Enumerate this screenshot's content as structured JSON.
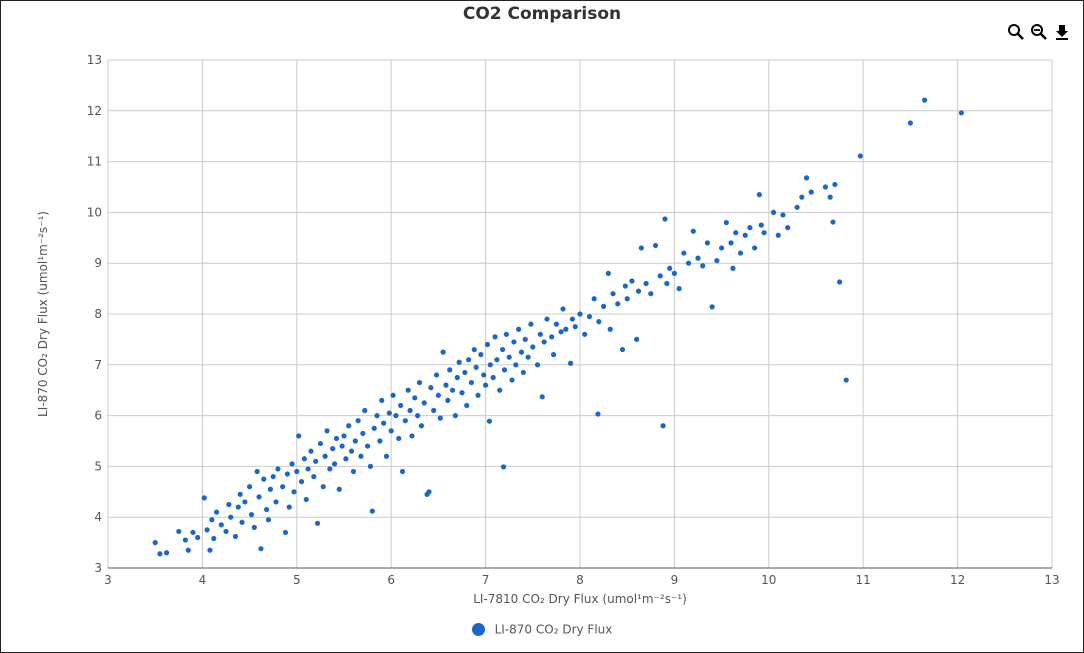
{
  "chart_data": {
    "type": "scatter",
    "title": "CO2 Comparison",
    "xlabel": "LI-7810 CO₂ Dry Flux (umol¹m⁻²s⁻¹)",
    "ylabel": "LI-870 CO₂ Dry Flux (umol¹m⁻²s⁻¹)",
    "xlim": [
      3,
      13
    ],
    "ylim": [
      3,
      13
    ],
    "xticks": [
      "3",
      "4",
      "5",
      "6",
      "7",
      "8",
      "9",
      "10",
      "11",
      "12",
      "13"
    ],
    "yticks": [
      "3",
      "4",
      "5",
      "6",
      "7",
      "8",
      "9",
      "10",
      "11",
      "12",
      "13"
    ],
    "grid": true,
    "legend_position": "bottom",
    "series": [
      {
        "name": "LI-870 CO₂ Dry Flux",
        "color": "#1a66c9",
        "points": [
          [
            3.5,
            3.5
          ],
          [
            3.55,
            3.28
          ],
          [
            3.62,
            3.3
          ],
          [
            3.75,
            3.72
          ],
          [
            3.82,
            3.55
          ],
          [
            3.85,
            3.35
          ],
          [
            3.9,
            3.7
          ],
          [
            3.95,
            3.6
          ],
          [
            4.02,
            4.38
          ],
          [
            4.05,
            3.75
          ],
          [
            4.08,
            3.35
          ],
          [
            4.1,
            3.95
          ],
          [
            4.12,
            3.58
          ],
          [
            4.15,
            4.1
          ],
          [
            4.2,
            3.85
          ],
          [
            4.25,
            3.72
          ],
          [
            4.28,
            4.25
          ],
          [
            4.3,
            4.0
          ],
          [
            4.35,
            3.62
          ],
          [
            4.38,
            4.2
          ],
          [
            4.4,
            4.45
          ],
          [
            4.42,
            3.9
          ],
          [
            4.45,
            4.3
          ],
          [
            4.5,
            4.6
          ],
          [
            4.52,
            4.05
          ],
          [
            4.55,
            3.8
          ],
          [
            4.58,
            4.9
          ],
          [
            4.6,
            4.4
          ],
          [
            4.62,
            3.38
          ],
          [
            4.65,
            4.75
          ],
          [
            4.68,
            4.15
          ],
          [
            4.7,
            3.95
          ],
          [
            4.72,
            4.55
          ],
          [
            4.75,
            4.8
          ],
          [
            4.78,
            4.3
          ],
          [
            4.8,
            4.95
          ],
          [
            4.85,
            4.6
          ],
          [
            4.88,
            3.7
          ],
          [
            4.9,
            4.85
          ],
          [
            4.92,
            4.2
          ],
          [
            4.95,
            5.05
          ],
          [
            4.97,
            4.5
          ],
          [
            5.0,
            4.9
          ],
          [
            5.02,
            5.6
          ],
          [
            5.05,
            4.7
          ],
          [
            5.08,
            5.15
          ],
          [
            5.1,
            4.35
          ],
          [
            5.12,
            4.95
          ],
          [
            5.15,
            5.3
          ],
          [
            5.18,
            4.8
          ],
          [
            5.2,
            5.1
          ],
          [
            5.22,
            3.88
          ],
          [
            5.25,
            5.45
          ],
          [
            5.28,
            4.6
          ],
          [
            5.3,
            5.2
          ],
          [
            5.32,
            5.7
          ],
          [
            5.35,
            4.95
          ],
          [
            5.38,
            5.35
          ],
          [
            5.4,
            5.05
          ],
          [
            5.42,
            5.55
          ],
          [
            5.45,
            4.55
          ],
          [
            5.48,
            5.4
          ],
          [
            5.5,
            5.6
          ],
          [
            5.52,
            5.15
          ],
          [
            5.55,
            5.8
          ],
          [
            5.58,
            5.3
          ],
          [
            5.6,
            4.9
          ],
          [
            5.62,
            5.5
          ],
          [
            5.65,
            5.9
          ],
          [
            5.68,
            5.2
          ],
          [
            5.7,
            5.65
          ],
          [
            5.72,
            6.1
          ],
          [
            5.75,
            5.4
          ],
          [
            5.78,
            5.0
          ],
          [
            5.8,
            4.12
          ],
          [
            5.82,
            5.75
          ],
          [
            5.85,
            6.0
          ],
          [
            5.88,
            5.5
          ],
          [
            5.9,
            6.3
          ],
          [
            5.92,
            5.85
          ],
          [
            5.95,
            5.2
          ],
          [
            5.98,
            6.05
          ],
          [
            6.0,
            5.7
          ],
          [
            6.02,
            6.4
          ],
          [
            6.05,
            6.0
          ],
          [
            6.08,
            5.55
          ],
          [
            6.1,
            6.2
          ],
          [
            6.12,
            4.9
          ],
          [
            6.15,
            5.9
          ],
          [
            6.18,
            6.5
          ],
          [
            6.2,
            6.1
          ],
          [
            6.22,
            5.6
          ],
          [
            6.25,
            6.35
          ],
          [
            6.28,
            6.0
          ],
          [
            6.3,
            6.65
          ],
          [
            6.32,
            5.8
          ],
          [
            6.35,
            6.25
          ],
          [
            6.38,
            4.45
          ],
          [
            6.4,
            4.5
          ],
          [
            6.42,
            6.55
          ],
          [
            6.45,
            6.1
          ],
          [
            6.48,
            6.8
          ],
          [
            6.5,
            6.4
          ],
          [
            6.52,
            5.95
          ],
          [
            6.55,
            7.25
          ],
          [
            6.58,
            6.6
          ],
          [
            6.6,
            6.3
          ],
          [
            6.62,
            6.9
          ],
          [
            6.65,
            6.5
          ],
          [
            6.68,
            6.0
          ],
          [
            6.7,
            6.75
          ],
          [
            6.72,
            7.05
          ],
          [
            6.75,
            6.45
          ],
          [
            6.78,
            6.85
          ],
          [
            6.8,
            6.2
          ],
          [
            6.82,
            7.1
          ],
          [
            6.85,
            6.65
          ],
          [
            6.88,
            7.3
          ],
          [
            6.9,
            6.95
          ],
          [
            6.92,
            6.4
          ],
          [
            6.95,
            7.2
          ],
          [
            6.98,
            6.8
          ],
          [
            7.0,
            6.6
          ],
          [
            7.02,
            7.4
          ],
          [
            7.04,
            5.89
          ],
          [
            7.05,
            7.0
          ],
          [
            7.08,
            6.75
          ],
          [
            7.1,
            7.55
          ],
          [
            7.12,
            7.1
          ],
          [
            7.15,
            6.5
          ],
          [
            7.18,
            7.3
          ],
          [
            7.19,
            4.99
          ],
          [
            7.2,
            6.9
          ],
          [
            7.22,
            7.6
          ],
          [
            7.25,
            7.15
          ],
          [
            7.28,
            6.7
          ],
          [
            7.3,
            7.45
          ],
          [
            7.32,
            7.0
          ],
          [
            7.35,
            7.7
          ],
          [
            7.38,
            7.25
          ],
          [
            7.4,
            6.85
          ],
          [
            7.42,
            7.5
          ],
          [
            7.45,
            7.15
          ],
          [
            7.48,
            7.8
          ],
          [
            7.5,
            7.35
          ],
          [
            7.55,
            7.0
          ],
          [
            7.58,
            7.6
          ],
          [
            7.6,
            6.37
          ],
          [
            7.62,
            7.45
          ],
          [
            7.65,
            7.9
          ],
          [
            7.7,
            7.55
          ],
          [
            7.72,
            7.2
          ],
          [
            7.75,
            7.8
          ],
          [
            7.8,
            7.65
          ],
          [
            7.82,
            8.1
          ],
          [
            7.85,
            7.7
          ],
          [
            7.9,
            7.03
          ],
          [
            7.92,
            7.9
          ],
          [
            7.95,
            7.75
          ],
          [
            8.0,
            8.0
          ],
          [
            8.05,
            7.6
          ],
          [
            8.1,
            7.95
          ],
          [
            8.15,
            8.3
          ],
          [
            8.19,
            6.03
          ],
          [
            8.2,
            7.85
          ],
          [
            8.25,
            8.15
          ],
          [
            8.3,
            8.8
          ],
          [
            8.32,
            7.7
          ],
          [
            8.35,
            8.4
          ],
          [
            8.4,
            8.2
          ],
          [
            8.45,
            7.3
          ],
          [
            8.48,
            8.55
          ],
          [
            8.5,
            8.3
          ],
          [
            8.55,
            8.65
          ],
          [
            8.6,
            7.5
          ],
          [
            8.62,
            8.45
          ],
          [
            8.65,
            9.3
          ],
          [
            8.7,
            8.6
          ],
          [
            8.75,
            8.4
          ],
          [
            8.8,
            9.35
          ],
          [
            8.85,
            8.75
          ],
          [
            8.88,
            5.8
          ],
          [
            8.9,
            9.87
          ],
          [
            8.92,
            8.6
          ],
          [
            8.95,
            8.9
          ],
          [
            9.0,
            8.8
          ],
          [
            9.05,
            8.5
          ],
          [
            9.1,
            9.2
          ],
          [
            9.15,
            9.0
          ],
          [
            9.2,
            9.63
          ],
          [
            9.25,
            9.1
          ],
          [
            9.3,
            8.95
          ],
          [
            9.35,
            9.4
          ],
          [
            9.4,
            8.14
          ],
          [
            9.45,
            9.05
          ],
          [
            9.5,
            9.3
          ],
          [
            9.55,
            9.8
          ],
          [
            9.6,
            9.4
          ],
          [
            9.62,
            8.9
          ],
          [
            9.65,
            9.6
          ],
          [
            9.7,
            9.2
          ],
          [
            9.75,
            9.55
          ],
          [
            9.8,
            9.7
          ],
          [
            9.85,
            9.3
          ],
          [
            9.9,
            10.35
          ],
          [
            9.92,
            9.75
          ],
          [
            9.95,
            9.6
          ],
          [
            10.05,
            10.0
          ],
          [
            10.1,
            9.55
          ],
          [
            10.15,
            9.95
          ],
          [
            10.2,
            9.7
          ],
          [
            10.3,
            10.1
          ],
          [
            10.35,
            10.3
          ],
          [
            10.4,
            10.68
          ],
          [
            10.45,
            10.4
          ],
          [
            10.6,
            10.5
          ],
          [
            10.65,
            10.3
          ],
          [
            10.68,
            9.81
          ],
          [
            10.7,
            10.55
          ],
          [
            10.75,
            8.63
          ],
          [
            10.82,
            6.7
          ],
          [
            10.97,
            11.11
          ],
          [
            11.5,
            11.76
          ],
          [
            11.65,
            12.21
          ],
          [
            12.04,
            11.96
          ]
        ]
      }
    ]
  },
  "toolbar": {
    "icons": [
      "zoom-in-icon",
      "zoom-out-icon",
      "download-icon"
    ]
  }
}
